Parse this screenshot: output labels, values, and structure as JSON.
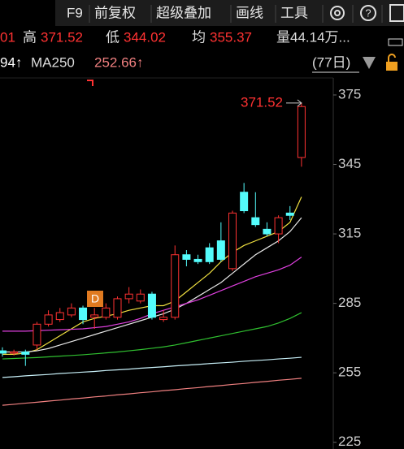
{
  "header": {
    "menu": [
      "F9",
      "前复权",
      "超级叠加",
      "画线",
      "工具"
    ],
    "stats": {
      "cut": "01",
      "high_label": "高",
      "high": "371.52",
      "low_label": "低",
      "low": "344.02",
      "avg_label": "均",
      "avg": "355.37",
      "volume": "量44.14万..."
    },
    "ma_row": {
      "cut": "94↑",
      "ma250_label": "MA250",
      "ma250": "252.66↑",
      "period": "(77日)"
    }
  },
  "chart_data": {
    "type": "candlestick",
    "open": [
      264.5,
      263.5,
      264,
      267,
      276,
      278,
      280,
      283,
      279,
      279,
      279,
      287,
      286,
      289,
      278,
      279,
      306,
      304,
      309,
      312,
      300,
      333,
      322,
      317,
      315,
      324,
      348
    ],
    "high": [
      266,
      265,
      265,
      277,
      282,
      283,
      285,
      284,
      283,
      285,
      288,
      292,
      291,
      290,
      282,
      310,
      308,
      306,
      311,
      320,
      325,
      337,
      333,
      320,
      323,
      327,
      371.52
    ],
    "low": [
      262,
      262.5,
      258,
      265,
      275,
      277,
      279,
      276,
      274,
      278,
      278,
      285,
      285,
      278,
      277,
      278,
      301,
      302,
      302,
      303,
      299,
      324,
      318,
      314,
      311,
      321,
      344.02
    ],
    "close": [
      263.5,
      264,
      263,
      276,
      280,
      281,
      283,
      278,
      280,
      283,
      287,
      289,
      289,
      279,
      279,
      306,
      304,
      303,
      303,
      304,
      324,
      325,
      319,
      315,
      322,
      323,
      370
    ],
    "up_color": "#ff3232",
    "down_color": "#54fcfc",
    "series": [
      {
        "color": "#f0e040",
        "values": [
          263,
          263,
          263.5,
          265,
          268,
          271,
          274,
          277,
          278.5,
          279.5,
          280.5,
          282,
          283,
          284,
          284,
          286,
          290,
          294,
          298,
          303,
          307,
          310,
          312,
          314,
          316,
          320,
          331
        ]
      },
      {
        "color": "#e8e8e8",
        "values": [
          264,
          264,
          264,
          264.5,
          265.5,
          267,
          268.5,
          270,
          271.5,
          273,
          274.5,
          276,
          277.5,
          279,
          280.5,
          282.5,
          285,
          288,
          291,
          294,
          298,
          302,
          306,
          309,
          312,
          316,
          322
        ]
      },
      {
        "color": "#e040e0",
        "values": [
          273,
          273,
          273,
          273.2,
          273.4,
          273.6,
          273.8,
          274,
          274.5,
          275,
          276,
          277,
          278.5,
          280.5,
          282,
          283.5,
          285,
          286.5,
          288.5,
          290.5,
          292.5,
          294.5,
          296.5,
          298,
          299.5,
          301.5,
          305
        ]
      },
      {
        "color": "#30c030",
        "values": [
          261,
          261.2,
          261.4,
          261.6,
          261.9,
          262.2,
          262.5,
          262.8,
          263.2,
          263.6,
          264,
          264.5,
          265,
          265.6,
          266.2,
          267,
          268,
          269,
          270,
          271,
          272,
          273,
          274,
          275,
          276.5,
          278.5,
          281
        ]
      },
      {
        "color": "#c8f0f8",
        "values": [
          253,
          253.3,
          253.7,
          254,
          254.3,
          254.7,
          255,
          255.3,
          255.6,
          256,
          256.3,
          256.6,
          257,
          257.3,
          257.6,
          258,
          258.3,
          258.6,
          259,
          259.3,
          259.6,
          260,
          260.3,
          260.6,
          261,
          261.3,
          261.7
        ]
      },
      {
        "color": "#f08080",
        "values": [
          241,
          241.4,
          241.9,
          242.3,
          242.8,
          243.2,
          243.7,
          244.1,
          244.6,
          245,
          245.5,
          245.9,
          246.4,
          246.8,
          247.3,
          247.7,
          248.2,
          248.6,
          249.1,
          249.5,
          250,
          250.4,
          250.9,
          251.3,
          251.8,
          252.2,
          252.66
        ]
      }
    ],
    "ylim": [
      222.1,
      382
    ],
    "yticks": [
      375,
      345,
      315,
      285,
      255,
      225
    ],
    "annotation": "371.52",
    "marker": "D"
  }
}
